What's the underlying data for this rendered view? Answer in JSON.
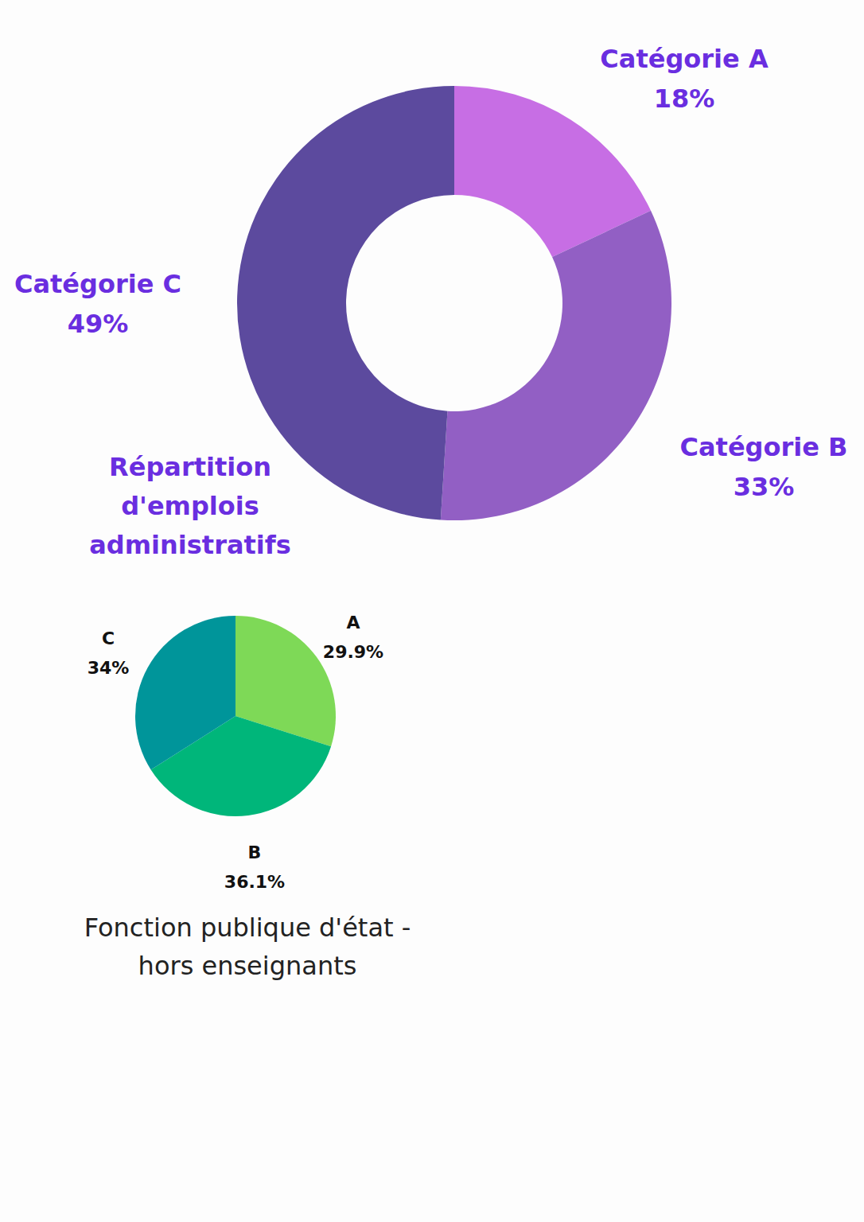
{
  "chart_data": [
    {
      "type": "donut",
      "title": "Répartition d'emplois administratifs",
      "categories": [
        "Catégorie A",
        "Catégorie B",
        "Catégorie C"
      ],
      "values": [
        18,
        33,
        49
      ],
      "value_labels": [
        "18%",
        "33%",
        "49%"
      ],
      "colors": [
        "#c76ee4",
        "#925fc4",
        "#5c4a9e"
      ],
      "data_labels": true
    },
    {
      "type": "pie",
      "title": "Fonction publique d'état - hors enseignants",
      "categories": [
        "A",
        "B",
        "C"
      ],
      "values": [
        29.9,
        36.1,
        34
      ],
      "value_labels": [
        "29.9%",
        "36.1%",
        "34%"
      ],
      "colors": [
        "#7ed957",
        "#00b67a",
        "#00959a"
      ],
      "data_labels": true
    }
  ]
}
